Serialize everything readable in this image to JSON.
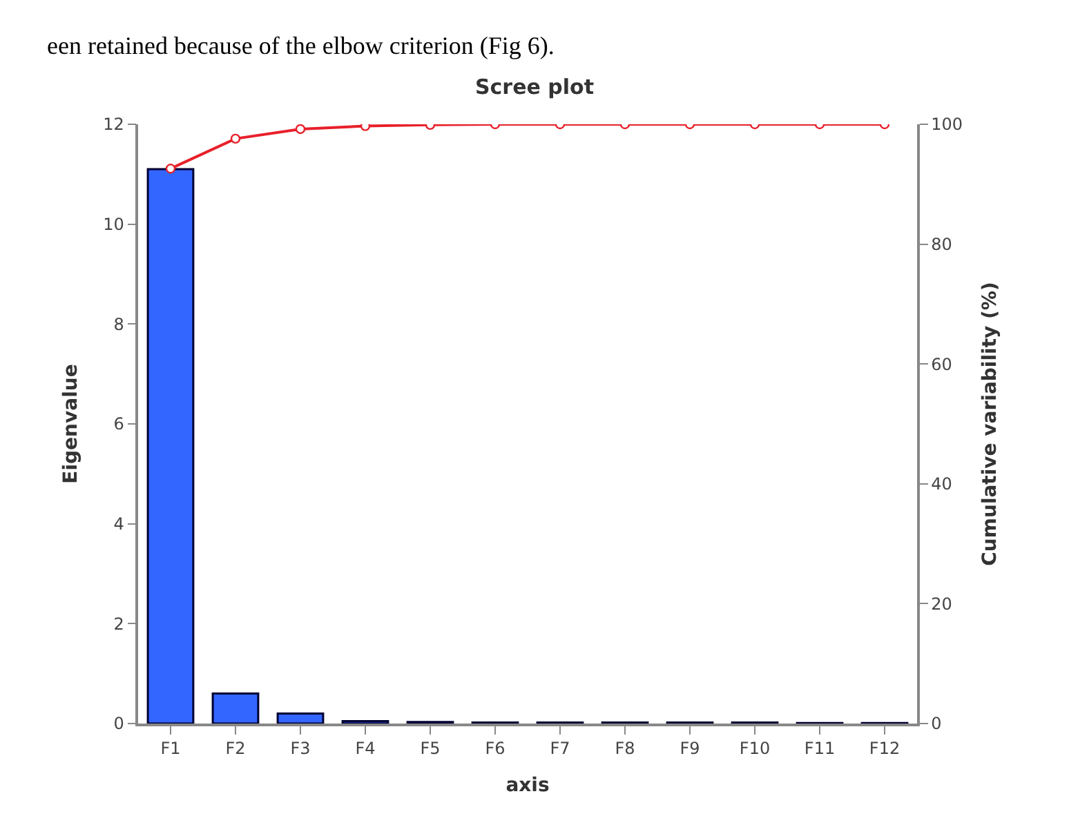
{
  "chart_data": {
    "type": "bar",
    "title": "Scree plot",
    "xlabel": "axis",
    "ylabel": "Eigenvalue",
    "y2label": "Cumulative variability (%)",
    "annotations": [
      "een retained because of the elbow criterion (Fig 6)."
    ],
    "categories": [
      "F1",
      "F2",
      "F3",
      "F4",
      "F5",
      "F6",
      "F7",
      "F8",
      "F9",
      "F10",
      "F11",
      "F12"
    ],
    "series": [
      {
        "color": "#3366ff",
        "values": [
          11.1,
          0.6,
          0.2,
          0.05,
          0.03,
          0.02,
          0.02,
          0.02,
          0.02,
          0.02,
          0.01,
          0.01
        ]
      },
      {
        "type": "line",
        "axis": "y2",
        "color": "#e8202a",
        "marker": "circle",
        "values": [
          92.6,
          97.6,
          99.2,
          99.7,
          99.9,
          100,
          100,
          100,
          100,
          100,
          100,
          100
        ]
      }
    ],
    "ylim": [
      0,
      12
    ],
    "yticks": [
      0,
      2,
      4,
      6,
      8,
      10,
      12
    ],
    "y2lim": [
      0,
      100
    ],
    "y2ticks": [
      0,
      20,
      40,
      60,
      80,
      100
    ]
  }
}
